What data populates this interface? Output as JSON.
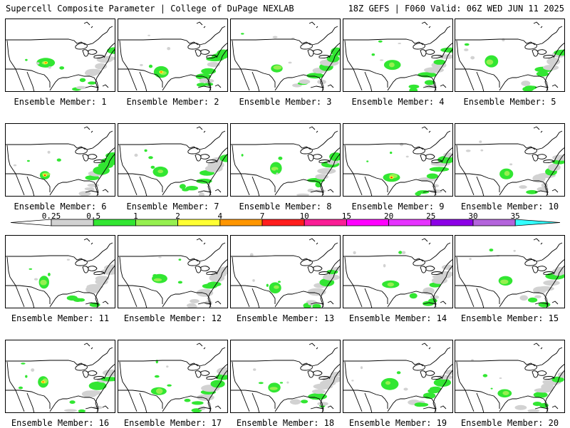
{
  "header": {
    "title": "Supercell Composite Parameter | College of DuPage NEXLAB",
    "run_info": "18Z GEFS | F060 Valid: 06Z WED JUN 11 2025"
  },
  "colorbar": {
    "labels": [
      "0.25",
      "0.5",
      "1",
      "2",
      "4",
      "7",
      "10",
      "15",
      "20",
      "25",
      "30",
      "35"
    ],
    "colors": [
      "#d2d2d2",
      "#32e632",
      "#96f050",
      "#ffff32",
      "#ff9600",
      "#ff1e1e",
      "#fa1e96",
      "#ff00ff",
      "#e632ff",
      "#8c00e6",
      "#b464dc",
      "#32ffff"
    ],
    "under_color": "#ffffff",
    "over_color": "#32ffff"
  },
  "members": [
    {
      "label": "Ensemble Member: 1"
    },
    {
      "label": "Ensemble Member: 2"
    },
    {
      "label": "Ensemble Member: 3"
    },
    {
      "label": "Ensemble Member: 4"
    },
    {
      "label": "Ensemble Member: 5"
    },
    {
      "label": "Ensemble Member: 6"
    },
    {
      "label": "Ensemble Member: 7"
    },
    {
      "label": "Ensemble Member: 8"
    },
    {
      "label": "Ensemble Member: 9"
    },
    {
      "label": "Ensemble Member: 10"
    },
    {
      "label": "Ensemble Member: 11"
    },
    {
      "label": "Ensemble Member: 12"
    },
    {
      "label": "Ensemble Member: 13"
    },
    {
      "label": "Ensemble Member: 14"
    },
    {
      "label": "Ensemble Member: 15"
    },
    {
      "label": "Ensemble Member: 16"
    },
    {
      "label": "Ensemble Member: 17"
    },
    {
      "label": "Ensemble Member: 18"
    },
    {
      "label": "Ensemble Member: 19"
    },
    {
      "label": "Ensemble Member: 20"
    }
  ]
}
